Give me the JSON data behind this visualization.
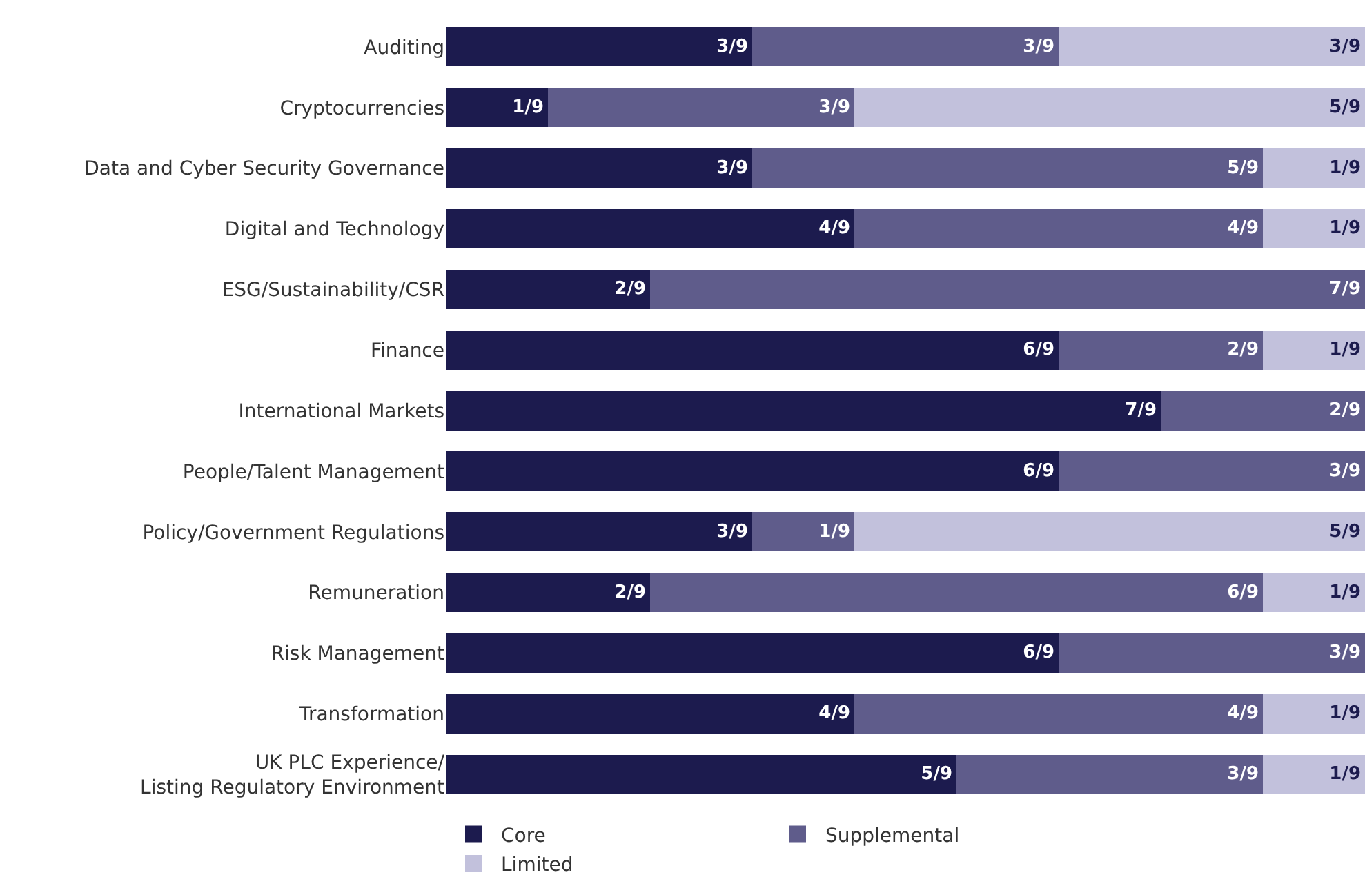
{
  "chart_data": {
    "type": "bar",
    "orientation": "horizontal",
    "stacked": true,
    "categories": [
      "Auditing",
      "Cryptocurrencies",
      "Data and Cyber Security Governance",
      "Digital and Technology",
      "ESG/Sustainability/CSR",
      "Finance",
      "International Markets",
      "People/Talent Management",
      "Policy/Government Regulations",
      "Remuneration",
      "Risk Management",
      "Transformation",
      "UK PLC Experience/\nListing Regulatory Environment"
    ],
    "xlim": [
      0,
      9
    ],
    "series": [
      {
        "name": "Core",
        "color": "#1c1b4e",
        "values": [
          3,
          1,
          3,
          4,
          2,
          6,
          7,
          6,
          3,
          2,
          6,
          4,
          5
        ],
        "value_labels": [
          "3/9",
          "1/9",
          "3/9",
          "4/9",
          "2/9",
          "6/9",
          "7/9",
          "6/9",
          "3/9",
          "2/9",
          "6/9",
          "4/9",
          "5/9"
        ]
      },
      {
        "name": "Supplemental",
        "color": "#5f5c8b",
        "values": [
          3,
          3,
          5,
          4,
          7,
          2,
          2,
          3,
          1,
          6,
          3,
          4,
          3
        ],
        "value_labels": [
          "3/9",
          "3/9",
          "5/9",
          "4/9",
          "7/9",
          "2/9",
          "2/9",
          "3/9",
          "1/9",
          "6/9",
          "3/9",
          "4/9",
          "3/9"
        ]
      },
      {
        "name": "Limited",
        "color": "#c2c1dc",
        "values": [
          3,
          5,
          1,
          1,
          null,
          1,
          null,
          null,
          5,
          1,
          null,
          1,
          1
        ],
        "value_labels": [
          "3/9",
          "5/9",
          "1/9",
          "1/9",
          null,
          "1/9",
          null,
          null,
          "5/9",
          "1/9",
          null,
          "1/9",
          "1/9"
        ]
      }
    ],
    "legend": "bottom",
    "grid": false,
    "tick_labels": "y"
  }
}
